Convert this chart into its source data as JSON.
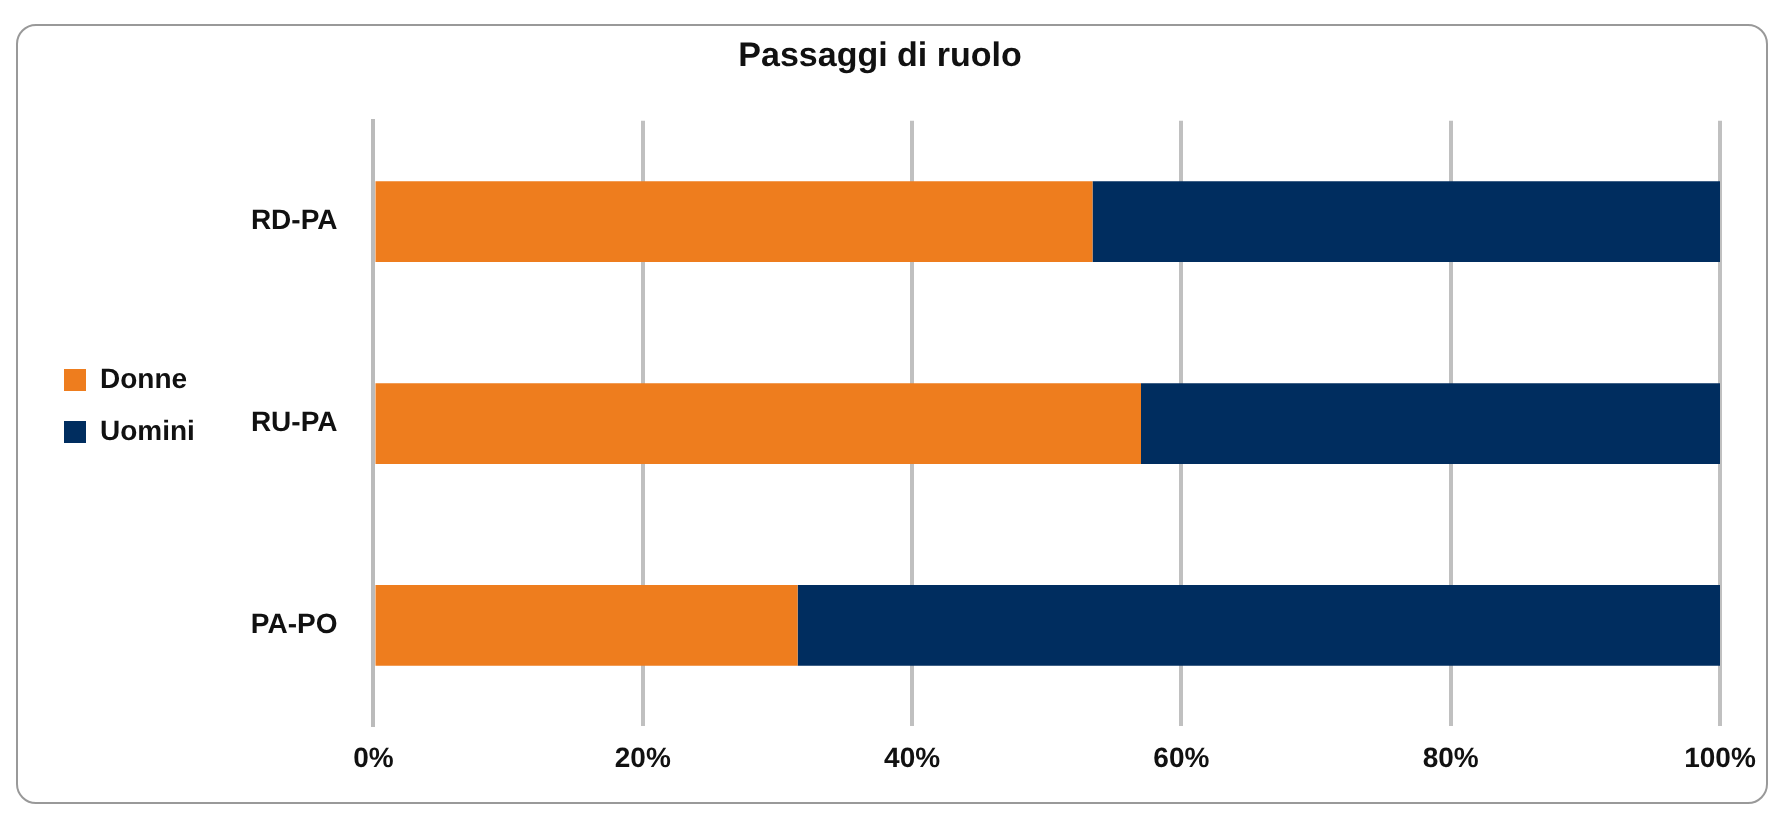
{
  "chart_data": {
    "type": "bar",
    "orientation": "horizontal",
    "stacked": true,
    "title": "Passaggi di ruolo",
    "categories": [
      "RD-PA",
      "RU-PA",
      "PA-PO"
    ],
    "series": [
      {
        "name": "Donne",
        "color": "#ee7d1e",
        "values": [
          53.4,
          57,
          31.5
        ]
      },
      {
        "name": "Uomini",
        "color": "#002d5f",
        "values": [
          46.6,
          43,
          68.5
        ]
      }
    ],
    "xlim": [
      0,
      100
    ],
    "xticks": [
      {
        "value": 0,
        "label": "0%"
      },
      {
        "value": 20,
        "label": "20%"
      },
      {
        "value": 40,
        "label": "40%"
      },
      {
        "value": 60,
        "label": "60%"
      },
      {
        "value": 80,
        "label": "80%"
      },
      {
        "value": 100,
        "label": "100%"
      }
    ],
    "grid": "x",
    "legend": "left"
  }
}
